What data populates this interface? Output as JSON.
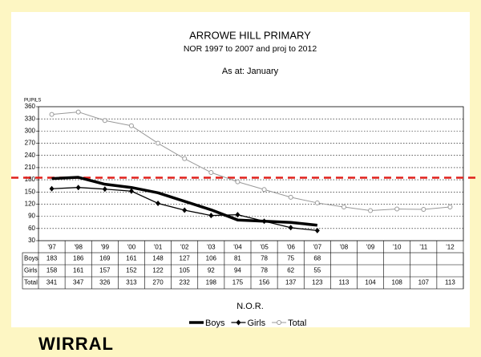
{
  "chart_data": {
    "type": "line",
    "title": "ARROWE HILL PRIMARY",
    "subtitle": "NOR 1997 to 2007 and proj to 2012",
    "annotation": "As at: January",
    "y_label": "PUPILS",
    "x_label": "N.O.R.",
    "categories": [
      "'97",
      "'98",
      "'99",
      "'00",
      "'01",
      "'02",
      "'03",
      "'04",
      "'05",
      "'06",
      "'07",
      "'08",
      "'09",
      "'10",
      "'11",
      "'12"
    ],
    "series": [
      {
        "name": "Boys",
        "color": "#000000",
        "width": 3.5,
        "marker": "none",
        "values": [
          183,
          186,
          169,
          161,
          148,
          127,
          106,
          81,
          78,
          75,
          68,
          null,
          null,
          null,
          null,
          null
        ]
      },
      {
        "name": "Girls",
        "color": "#000000",
        "width": 1.3,
        "marker": "diamond",
        "values": [
          158,
          161,
          157,
          152,
          122,
          105,
          92,
          94,
          78,
          62,
          55,
          null,
          null,
          null,
          null,
          null
        ]
      },
      {
        "name": "Total",
        "color": "#999999",
        "width": 1,
        "marker": "circle",
        "values": [
          341,
          347,
          326,
          313,
          270,
          232,
          198,
          175,
          156,
          137,
          123,
          113,
          104,
          108,
          107,
          113
        ]
      }
    ],
    "ylim": [
      30,
      360
    ],
    "yticks": [
      30,
      60,
      90,
      120,
      150,
      180,
      210,
      240,
      270,
      300,
      330,
      360
    ],
    "grid": true,
    "reference_line": {
      "value": 185,
      "color": "#e0201b"
    },
    "legend": "bottom"
  },
  "logo": "WIRRAL"
}
